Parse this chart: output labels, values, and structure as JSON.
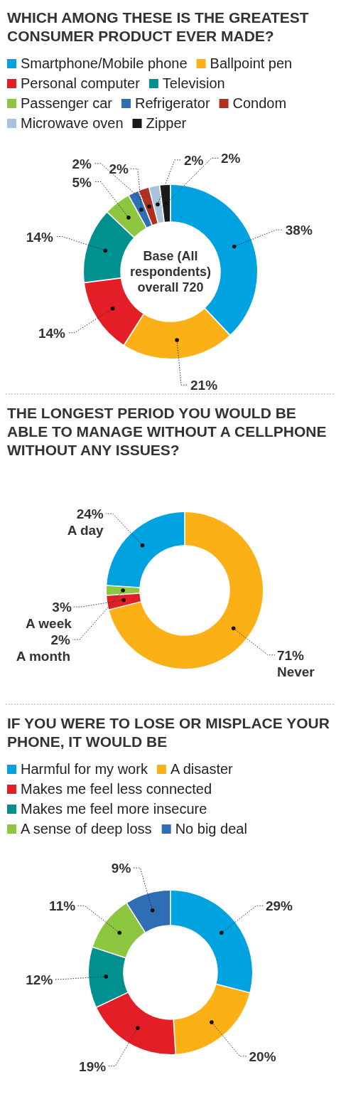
{
  "chart_data": [
    {
      "type": "donut",
      "title": "WHICH AMONG THESE IS THE GREATEST CONSUMER PRODUCT EVER MADE?",
      "categories": [
        "Smartphone/Mobile phone",
        "Ballpoint pen",
        "Personal computer",
        "Television",
        "Passenger car",
        "Refrigerator",
        "Condom",
        "Microwave oven",
        "Zipper"
      ],
      "values": [
        38,
        21,
        14,
        14,
        5,
        2,
        2,
        2,
        2
      ],
      "value_labels": [
        "38%",
        "21%",
        "14%",
        "14%",
        "5%",
        "2%",
        "2%",
        "2%",
        "2%"
      ],
      "colors": [
        "#00a3e0",
        "#fbb116",
        "#e31e26",
        "#00918f",
        "#8dc63f",
        "#2f6db5",
        "#b2301f",
        "#a8c4dd",
        "#1a1a1a"
      ],
      "legend": "top",
      "annotations": [
        "Base (All respondents) overall 720"
      ]
    },
    {
      "type": "donut",
      "title": "THE LONGEST PERIOD YOU WOULD BE ABLE TO MANAGE WITHOUT A CELLPHONE WITHOUT ANY ISSUES?",
      "categories": [
        "Never",
        "A week",
        "A month",
        "A day"
      ],
      "values": [
        71,
        3,
        2,
        24
      ],
      "value_labels": [
        "71%",
        "3%",
        "2%",
        "24%"
      ],
      "colors": [
        "#fbb116",
        "#e31e26",
        "#8dc63f",
        "#00a3e0"
      ]
    },
    {
      "type": "donut",
      "title": "IF YOU WERE TO LOSE OR MISPLACE YOUR PHONE, IT WOULD BE",
      "categories": [
        "Harmful for my work",
        "A disaster",
        "Makes me feel less connected",
        "Makes me feel more insecure",
        "A sense of deep loss",
        "No big deal"
      ],
      "values": [
        29,
        20,
        19,
        12,
        11,
        9
      ],
      "value_labels": [
        "29%",
        "20%",
        "19%",
        "12%",
        "11%",
        "9%"
      ],
      "colors": [
        "#00a3e0",
        "#fbb116",
        "#e31e26",
        "#00918f",
        "#8dc63f",
        "#2f6db5"
      ],
      "legend": "top"
    }
  ]
}
